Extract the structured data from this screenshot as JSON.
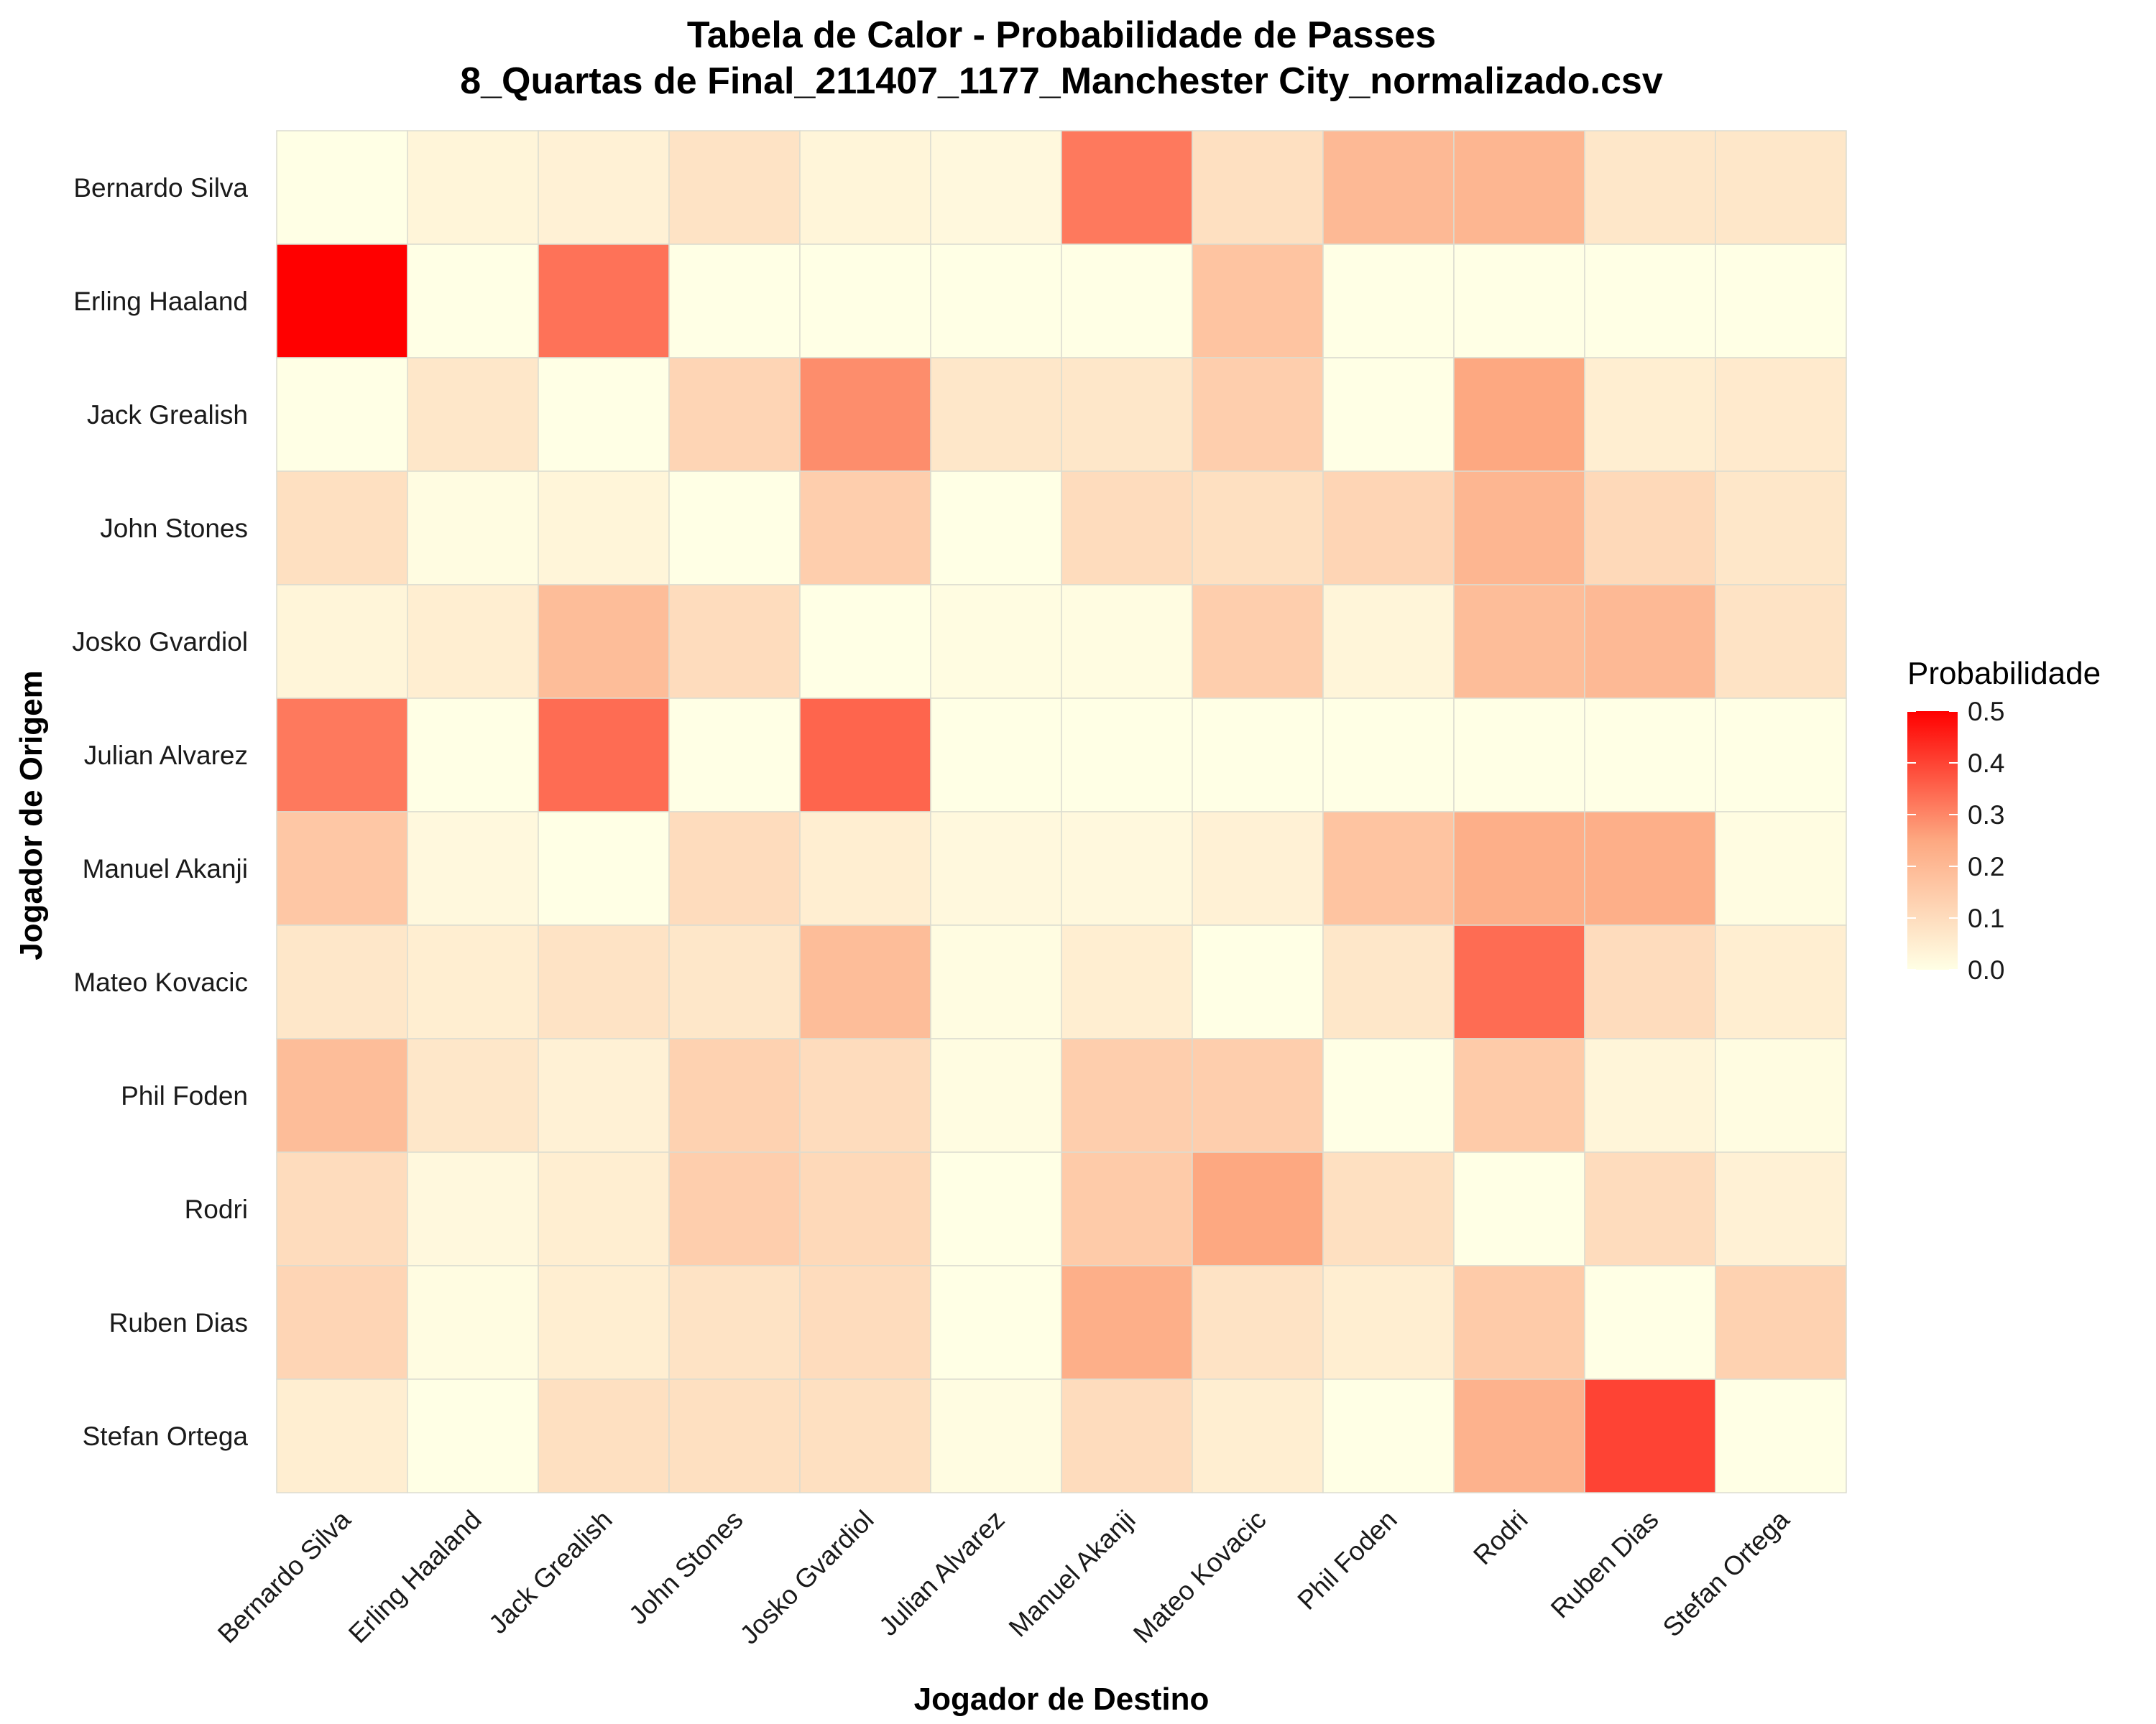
{
  "chart_data": {
    "type": "heatmap",
    "title": "Tabela de Calor - Probabilidade de Passes",
    "subtitle": "8_Quartas de Final_211407_1177_Manchester City_normalizado.csv",
    "xlabel": "Jogador de Destino",
    "ylabel": "Jogador de Origem",
    "x_categories": [
      "Bernardo Silva",
      "Erling Haaland",
      "Jack Grealish",
      "John Stones",
      "Josko Gvardiol",
      "Julian Alvarez",
      "Manuel Akanji",
      "Mateo Kovacic",
      "Phil Foden",
      "Rodri",
      "Ruben Dias",
      "Stefan Ortega"
    ],
    "y_categories": [
      "Bernardo Silva",
      "Erling Haaland",
      "Jack Grealish",
      "John Stones",
      "Josko Gvardiol",
      "Julian Alvarez",
      "Manuel Akanji",
      "Mateo Kovacic",
      "Phil Foden",
      "Rodri",
      "Ruben Dias",
      "Stefan Ortega"
    ],
    "values": [
      [
        0.0,
        0.03,
        0.04,
        0.08,
        0.03,
        0.02,
        0.32,
        0.09,
        0.2,
        0.21,
        0.07,
        0.07
      ],
      [
        0.5,
        0.0,
        0.33,
        0.0,
        0.0,
        0.0,
        0.0,
        0.17,
        0.0,
        0.0,
        0.0,
        0.0
      ],
      [
        0.0,
        0.07,
        0.0,
        0.12,
        0.29,
        0.07,
        0.07,
        0.14,
        0.0,
        0.25,
        0.05,
        0.06
      ],
      [
        0.09,
        0.01,
        0.03,
        0.0,
        0.14,
        0.0,
        0.1,
        0.09,
        0.12,
        0.21,
        0.11,
        0.07
      ],
      [
        0.03,
        0.05,
        0.19,
        0.1,
        0.0,
        0.01,
        0.01,
        0.14,
        0.03,
        0.19,
        0.2,
        0.08
      ],
      [
        0.32,
        0.0,
        0.34,
        0.0,
        0.35,
        0.0,
        0.0,
        0.0,
        0.0,
        0.0,
        0.0,
        0.0
      ],
      [
        0.16,
        0.02,
        0.0,
        0.1,
        0.05,
        0.02,
        0.02,
        0.04,
        0.17,
        0.23,
        0.23,
        0.01
      ],
      [
        0.07,
        0.05,
        0.08,
        0.07,
        0.19,
        0.01,
        0.05,
        0.0,
        0.07,
        0.34,
        0.1,
        0.05
      ],
      [
        0.19,
        0.07,
        0.04,
        0.13,
        0.1,
        0.01,
        0.14,
        0.14,
        0.0,
        0.15,
        0.03,
        0.01
      ],
      [
        0.1,
        0.02,
        0.05,
        0.14,
        0.11,
        0.0,
        0.15,
        0.25,
        0.09,
        0.0,
        0.1,
        0.04
      ],
      [
        0.12,
        0.01,
        0.05,
        0.08,
        0.1,
        0.0,
        0.23,
        0.08,
        0.05,
        0.15,
        0.0,
        0.13
      ],
      [
        0.05,
        0.0,
        0.09,
        0.09,
        0.09,
        0.01,
        0.1,
        0.05,
        0.0,
        0.22,
        0.4,
        0.0
      ]
    ],
    "colorscale": {
      "min": 0.0,
      "max": 0.5,
      "low_color": "#ffffe5",
      "mid_color": "#fda881",
      "high_color": "#ff0000"
    },
    "legend": {
      "title": "Probabilidade",
      "ticks": [
        "0.0",
        "0.1",
        "0.2",
        "0.3",
        "0.4",
        "0.5"
      ],
      "position": "right"
    },
    "grid": true
  }
}
